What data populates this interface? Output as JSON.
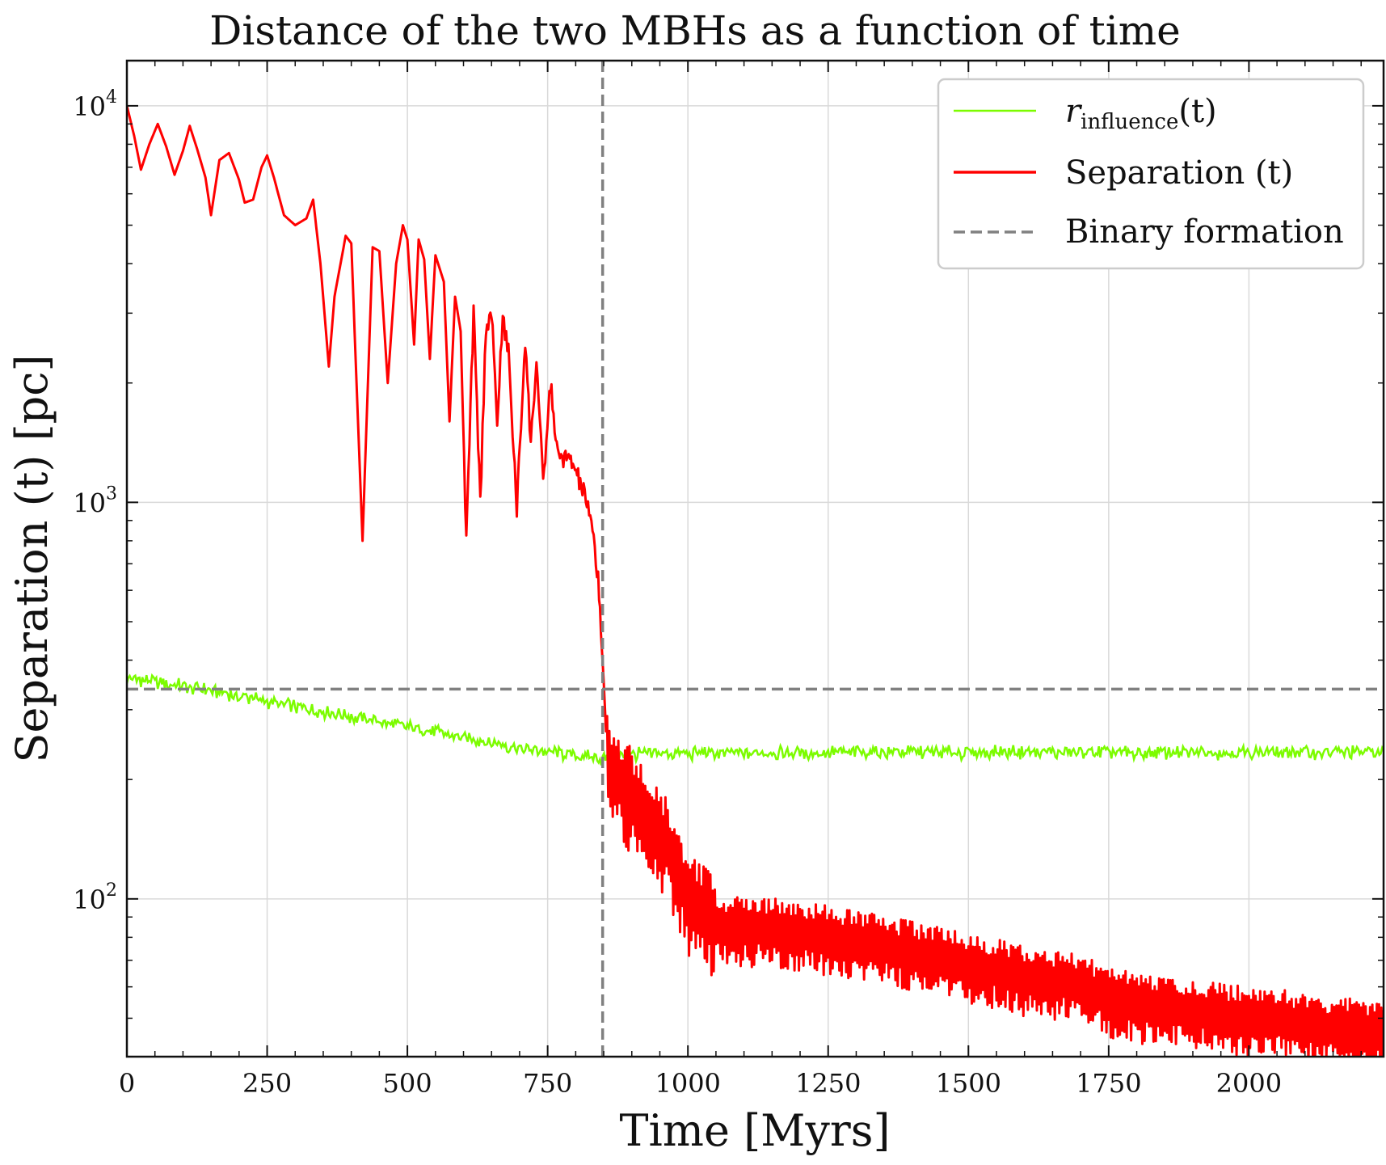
{
  "chart_data": {
    "type": "line",
    "title": "Distance of the two MBHs as a function of time",
    "xlabel": "Time [Myrs]",
    "ylabel": "Separation (t) [pc]",
    "xlim": [
      0,
      2240
    ],
    "ylim": [
      40,
      13000
    ],
    "yscale": "log",
    "grid": true,
    "legend_position": "top-right",
    "x_ticks": [
      0,
      250,
      500,
      750,
      1000,
      1250,
      1500,
      1750,
      2000
    ],
    "x_tick_labels": [
      "0",
      "250",
      "500",
      "750",
      "1000",
      "1250",
      "1500",
      "1750",
      "2000"
    ],
    "y_ticks": [
      100,
      1000,
      10000
    ],
    "y_tick_labels": [
      {
        "base": "10",
        "exp": "2"
      },
      {
        "base": "10",
        "exp": "3"
      },
      {
        "base": "10",
        "exp": "4"
      }
    ],
    "series": [
      {
        "name": "r_influence(t)",
        "legend_main": "r",
        "legend_sub": "influence",
        "legend_tail": "(t)",
        "color": "#7CFC00",
        "style": "solid",
        "points": [
          [
            0,
            360
          ],
          [
            100,
            345
          ],
          [
            200,
            325
          ],
          [
            300,
            305
          ],
          [
            400,
            288
          ],
          [
            500,
            272
          ],
          [
            600,
            255
          ],
          [
            700,
            240
          ],
          [
            800,
            230
          ],
          [
            848,
            225
          ],
          [
            900,
            232
          ],
          [
            1000,
            233
          ],
          [
            1250,
            234
          ],
          [
            1500,
            234
          ],
          [
            1750,
            234
          ],
          [
            2000,
            234
          ],
          [
            2240,
            235
          ]
        ]
      },
      {
        "name": "Separation (t)",
        "color": "#ff0000",
        "style": "solid",
        "points": [
          [
            0,
            10000
          ],
          [
            13,
            8400
          ],
          [
            25,
            6900
          ],
          [
            40,
            8000
          ],
          [
            55,
            9000
          ],
          [
            70,
            7900
          ],
          [
            85,
            6700
          ],
          [
            100,
            7700
          ],
          [
            112,
            8900
          ],
          [
            125,
            7800
          ],
          [
            140,
            6600
          ],
          [
            150,
            5300
          ],
          [
            165,
            7300
          ],
          [
            182,
            7600
          ],
          [
            200,
            6500
          ],
          [
            210,
            5700
          ],
          [
            225,
            5800
          ],
          [
            240,
            7000
          ],
          [
            250,
            7500
          ],
          [
            262,
            6600
          ],
          [
            280,
            5300
          ],
          [
            300,
            5000
          ],
          [
            320,
            5200
          ],
          [
            332,
            5800
          ],
          [
            345,
            4000
          ],
          [
            360,
            2200
          ],
          [
            370,
            3300
          ],
          [
            390,
            4700
          ],
          [
            400,
            4500
          ],
          [
            420,
            800
          ],
          [
            438,
            4400
          ],
          [
            450,
            4300
          ],
          [
            465,
            2000
          ],
          [
            480,
            4000
          ],
          [
            492,
            5000
          ],
          [
            500,
            4600
          ],
          [
            512,
            2500
          ],
          [
            520,
            4600
          ],
          [
            530,
            4100
          ],
          [
            540,
            2300
          ],
          [
            550,
            4200
          ],
          [
            565,
            3600
          ],
          [
            575,
            1600
          ],
          [
            585,
            3300
          ],
          [
            595,
            2700
          ],
          [
            605,
            800
          ],
          [
            618,
            3000
          ],
          [
            630,
            1000
          ],
          [
            640,
            2800
          ],
          [
            650,
            3000
          ],
          [
            660,
            1600
          ],
          [
            670,
            2900
          ],
          [
            680,
            2400
          ],
          [
            695,
            960
          ],
          [
            710,
            2600
          ],
          [
            720,
            1400
          ],
          [
            730,
            2300
          ],
          [
            742,
            1100
          ],
          [
            755,
            2000
          ],
          [
            768,
            1300
          ],
          [
            780,
            1300
          ],
          [
            795,
            1250
          ],
          [
            810,
            1100
          ],
          [
            820,
            1000
          ],
          [
            832,
            800
          ],
          [
            840,
            650
          ],
          [
            845,
            480
          ],
          [
            850,
            350
          ],
          [
            856,
            230
          ],
          [
            870,
            205
          ],
          [
            900,
            185
          ],
          [
            930,
            160
          ],
          [
            960,
            140
          ],
          [
            990,
            110
          ],
          [
            1010,
            98
          ],
          [
            1030,
            93
          ],
          [
            1060,
            85
          ],
          [
            1100,
            84
          ],
          [
            1150,
            84
          ],
          [
            1200,
            82
          ],
          [
            1250,
            80
          ],
          [
            1300,
            78
          ],
          [
            1350,
            76
          ],
          [
            1400,
            73
          ],
          [
            1450,
            71
          ],
          [
            1500,
            68
          ],
          [
            1550,
            66
          ],
          [
            1600,
            63
          ],
          [
            1650,
            62
          ],
          [
            1700,
            61
          ],
          [
            1750,
            56
          ],
          [
            1800,
            54
          ],
          [
            1850,
            53
          ],
          [
            1900,
            52
          ],
          [
            1950,
            51
          ],
          [
            2000,
            50
          ],
          [
            2050,
            50
          ],
          [
            2100,
            48
          ],
          [
            2150,
            47
          ],
          [
            2200,
            47
          ],
          [
            2240,
            45
          ]
        ]
      },
      {
        "name": "Binary formation",
        "color": "#808080",
        "style": "dashed",
        "vline_x": 848,
        "hline_y": 338
      }
    ]
  }
}
